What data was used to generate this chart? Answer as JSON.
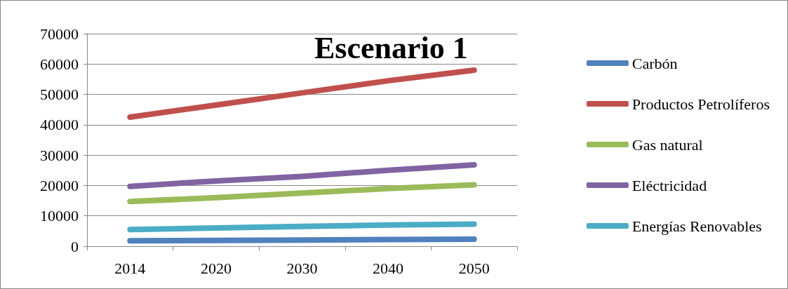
{
  "chart_data": {
    "type": "line",
    "title": "Escenario 1",
    "categories": [
      "2014",
      "2020",
      "2030",
      "2040",
      "2050"
    ],
    "series": [
      {
        "name": "Carbón",
        "color": "#4f81bd",
        "values": [
          1800,
          1900,
          2000,
          2200,
          2300
        ]
      },
      {
        "name": "Productos Petrolíferos",
        "color": "#c0504d",
        "values": [
          42500,
          46500,
          50500,
          54500,
          58000
        ]
      },
      {
        "name": "Gas natural",
        "color": "#9bbb59",
        "values": [
          14700,
          16000,
          17500,
          19000,
          20200
        ]
      },
      {
        "name": "Eléctricidad",
        "color": "#8064a2",
        "values": [
          19700,
          21500,
          23000,
          25000,
          26800
        ]
      },
      {
        "name": "Energías Renovables",
        "color": "#4bacc6",
        "values": [
          5500,
          6000,
          6500,
          7000,
          7300
        ]
      }
    ],
    "ylim": [
      0,
      70000
    ],
    "yticks": [
      0,
      10000,
      20000,
      30000,
      40000,
      50000,
      60000,
      70000
    ],
    "grid": "y",
    "legend": "right",
    "marker": "none",
    "line_style": "solid"
  }
}
